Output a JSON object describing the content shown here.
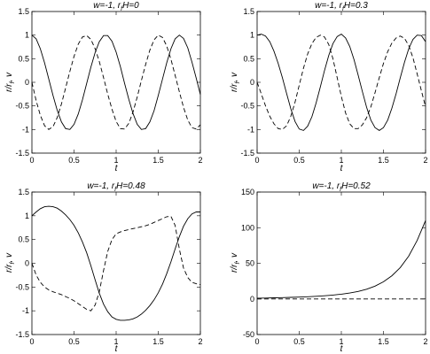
{
  "figure": {
    "panels_count": 4
  },
  "chart_data": [
    {
      "type": "line",
      "title": "w=-1, r_fH=0",
      "title_parts": [
        "w=-1, r",
        "f",
        "H=0"
      ],
      "xlabel": "t",
      "ylabel_parts": [
        "r/r",
        "f",
        ", v"
      ],
      "xlim": [
        0,
        2
      ],
      "ylim": [
        -1.5,
        1.5
      ],
      "xticks": [
        "0",
        "0.5",
        "1",
        "1.5",
        "2"
      ],
      "yticks": [
        "-1.5",
        "-1",
        "-0.5",
        "0",
        "0.5",
        "1",
        "1.5"
      ],
      "xtick_values": [
        0,
        0.5,
        1,
        1.5,
        2
      ],
      "ytick_values": [
        -1.5,
        -1,
        -0.5,
        0,
        0.5,
        1,
        1.5
      ],
      "series": [
        {
          "style": "solid",
          "x": [
            0,
            0.05,
            0.1,
            0.15,
            0.2,
            0.25,
            0.3,
            0.35,
            0.4,
            0.45,
            0.5,
            0.55,
            0.6,
            0.65,
            0.7,
            0.75,
            0.8,
            0.85,
            0.9,
            0.95,
            1.0,
            1.05,
            1.1,
            1.15,
            1.2,
            1.25,
            1.3,
            1.35,
            1.4,
            1.45,
            1.5,
            1.55,
            1.6,
            1.65,
            1.7,
            1.75,
            1.8,
            1.85,
            1.9,
            1.95,
            2.0
          ],
          "y": [
            1.0,
            0.92,
            0.71,
            0.41,
            0.07,
            -0.28,
            -0.59,
            -0.84,
            -0.98,
            -1.0,
            -0.89,
            -0.67,
            -0.37,
            -0.02,
            0.32,
            0.63,
            0.86,
            0.99,
            0.99,
            0.87,
            0.64,
            0.33,
            -0.02,
            -0.36,
            -0.66,
            -0.89,
            -1.0,
            -0.98,
            -0.84,
            -0.6,
            -0.28,
            0.07,
            0.41,
            0.71,
            0.92,
            1.0,
            0.93,
            0.73,
            0.43,
            0.09,
            -0.26
          ]
        },
        {
          "style": "dashed",
          "x": [
            0,
            0.05,
            0.1,
            0.15,
            0.2,
            0.25,
            0.3,
            0.35,
            0.4,
            0.45,
            0.5,
            0.55,
            0.6,
            0.65,
            0.7,
            0.75,
            0.8,
            0.85,
            0.9,
            0.95,
            1.0,
            1.05,
            1.1,
            1.15,
            1.2,
            1.25,
            1.3,
            1.35,
            1.4,
            1.45,
            1.5,
            1.55,
            1.6,
            1.65,
            1.7,
            1.75,
            1.8,
            1.85,
            1.9,
            1.95,
            2.0
          ],
          "y": [
            0.0,
            -0.39,
            -0.7,
            -0.92,
            -1.0,
            -0.94,
            -0.75,
            -0.46,
            -0.12,
            0.23,
            0.55,
            0.81,
            0.96,
            0.99,
            0.91,
            0.71,
            0.44,
            0.1,
            -0.25,
            -0.57,
            -0.83,
            -0.98,
            -0.99,
            -0.87,
            -0.63,
            -0.31,
            0.04,
            0.38,
            0.68,
            0.9,
            1.0,
            0.95,
            0.77,
            0.49,
            0.15,
            -0.2,
            -0.53,
            -0.8,
            -0.96,
            -0.99,
            -0.9
          ]
        }
      ]
    },
    {
      "type": "line",
      "title": "w=-1, r_fH=0.3",
      "title_parts": [
        "w=-1, r",
        "f",
        "H=0.3"
      ],
      "xlabel": "t",
      "ylabel_parts": [
        "r/r",
        "f",
        ", v"
      ],
      "xlim": [
        0,
        2
      ],
      "ylim": [
        -1.5,
        1.5
      ],
      "xticks": [
        "0",
        "0.5",
        "1",
        "1.5",
        "2"
      ],
      "yticks": [
        "-1.5",
        "-1",
        "-0.5",
        "0",
        "0.5",
        "1",
        "1.5"
      ],
      "xtick_values": [
        0,
        0.5,
        1,
        1.5,
        2
      ],
      "ytick_values": [
        -1.5,
        -1,
        -0.5,
        0,
        0.5,
        1,
        1.5
      ],
      "series": [
        {
          "style": "solid",
          "x": [
            0,
            0.05,
            0.1,
            0.15,
            0.2,
            0.25,
            0.3,
            0.35,
            0.4,
            0.45,
            0.5,
            0.55,
            0.6,
            0.65,
            0.7,
            0.75,
            0.8,
            0.85,
            0.9,
            0.95,
            1.0,
            1.05,
            1.1,
            1.15,
            1.2,
            1.25,
            1.3,
            1.35,
            1.4,
            1.45,
            1.5,
            1.55,
            1.6,
            1.65,
            1.7,
            1.75,
            1.8,
            1.85,
            1.9,
            1.95,
            2.0
          ],
          "y": [
            1.0,
            1.02,
            0.98,
            0.86,
            0.66,
            0.4,
            0.1,
            -0.24,
            -0.56,
            -0.83,
            -0.99,
            -1.02,
            -0.93,
            -0.73,
            -0.44,
            -0.1,
            0.25,
            0.57,
            0.82,
            0.97,
            1.02,
            0.94,
            0.76,
            0.48,
            0.15,
            -0.2,
            -0.53,
            -0.8,
            -0.96,
            -1.02,
            -0.96,
            -0.8,
            -0.55,
            -0.24,
            0.1,
            0.43,
            0.71,
            0.91,
            1.0,
            0.99,
            0.86
          ]
        },
        {
          "style": "dashed",
          "x": [
            0,
            0.05,
            0.1,
            0.15,
            0.2,
            0.25,
            0.3,
            0.35,
            0.4,
            0.45,
            0.5,
            0.55,
            0.6,
            0.65,
            0.7,
            0.75,
            0.8,
            0.85,
            0.9,
            0.95,
            1.0,
            1.05,
            1.1,
            1.15,
            1.2,
            1.25,
            1.3,
            1.35,
            1.4,
            1.45,
            1.5,
            1.55,
            1.6,
            1.65,
            1.7,
            1.75,
            1.8,
            1.85,
            1.9,
            1.95,
            2.0
          ],
          "y": [
            0.0,
            -0.25,
            -0.5,
            -0.72,
            -0.88,
            -0.98,
            -1.0,
            -0.92,
            -0.72,
            -0.42,
            -0.06,
            0.3,
            0.6,
            0.82,
            0.95,
            1.0,
            0.96,
            0.8,
            0.5,
            0.1,
            -0.3,
            -0.65,
            -0.88,
            -0.98,
            -0.98,
            -0.9,
            -0.75,
            -0.52,
            -0.22,
            0.1,
            0.4,
            0.65,
            0.83,
            0.94,
            0.98,
            0.93,
            0.78,
            0.52,
            0.18,
            -0.18,
            -0.52
          ]
        }
      ]
    },
    {
      "type": "line",
      "title": "w=-1, r_fH=0.48",
      "title_parts": [
        "w=-1, r",
        "f",
        "H=0.48"
      ],
      "xlabel": "t",
      "ylabel_parts": [
        "r/r",
        "f",
        ", v"
      ],
      "xlim": [
        0,
        2
      ],
      "ylim": [
        -1.5,
        1.5
      ],
      "xticks": [
        "0",
        "0.5",
        "1",
        "1.5",
        "2"
      ],
      "yticks": [
        "-1.5",
        "-1",
        "-0.5",
        "0",
        "0.5",
        "1",
        "1.5"
      ],
      "xtick_values": [
        0,
        0.5,
        1,
        1.5,
        2
      ],
      "ytick_values": [
        -1.5,
        -1,
        -0.5,
        0,
        0.5,
        1,
        1.5
      ],
      "series": [
        {
          "style": "solid",
          "x": [
            0,
            0.05,
            0.1,
            0.15,
            0.2,
            0.25,
            0.3,
            0.35,
            0.4,
            0.45,
            0.5,
            0.55,
            0.6,
            0.65,
            0.7,
            0.75,
            0.8,
            0.85,
            0.9,
            0.95,
            1.0,
            1.05,
            1.1,
            1.15,
            1.2,
            1.25,
            1.3,
            1.35,
            1.4,
            1.45,
            1.5,
            1.55,
            1.6,
            1.65,
            1.7,
            1.75,
            1.8,
            1.85,
            1.9,
            1.95,
            2.0
          ],
          "y": [
            1.0,
            1.08,
            1.15,
            1.19,
            1.2,
            1.19,
            1.16,
            1.1,
            1.02,
            0.92,
            0.8,
            0.64,
            0.45,
            0.22,
            -0.05,
            -0.35,
            -0.63,
            -0.86,
            -1.02,
            -1.13,
            -1.18,
            -1.2,
            -1.2,
            -1.19,
            -1.17,
            -1.13,
            -1.07,
            -0.99,
            -0.89,
            -0.77,
            -0.62,
            -0.44,
            -0.22,
            0.03,
            0.3,
            0.56,
            0.78,
            0.94,
            1.04,
            1.08,
            1.08
          ]
        },
        {
          "style": "dashed",
          "x": [
            0,
            0.05,
            0.1,
            0.15,
            0.2,
            0.25,
            0.3,
            0.35,
            0.4,
            0.45,
            0.5,
            0.55,
            0.6,
            0.65,
            0.7,
            0.75,
            0.8,
            0.85,
            0.9,
            0.95,
            1.0,
            1.05,
            1.1,
            1.15,
            1.2,
            1.25,
            1.3,
            1.35,
            1.4,
            1.45,
            1.5,
            1.55,
            1.6,
            1.65,
            1.7,
            1.75,
            1.8,
            1.85,
            1.9,
            1.95,
            2.0
          ],
          "y": [
            0.0,
            -0.25,
            -0.4,
            -0.5,
            -0.56,
            -0.6,
            -0.63,
            -0.66,
            -0.7,
            -0.74,
            -0.79,
            -0.85,
            -0.91,
            -0.97,
            -1.0,
            -0.88,
            -0.6,
            -0.15,
            0.25,
            0.5,
            0.62,
            0.66,
            0.69,
            0.71,
            0.73,
            0.75,
            0.77,
            0.79,
            0.82,
            0.86,
            0.9,
            0.94,
            0.98,
            0.99,
            0.8,
            0.3,
            -0.1,
            -0.3,
            -0.4,
            -0.43,
            -0.45
          ]
        }
      ]
    },
    {
      "type": "line",
      "title": "w=-1, r_fH=0.52",
      "title_parts": [
        "w=-1, r",
        "f",
        "H=0.52"
      ],
      "xlabel": "t",
      "ylabel_parts": [
        "r/r",
        "f",
        ", v"
      ],
      "xlim": [
        0,
        2
      ],
      "ylim": [
        -50,
        150
      ],
      "xticks": [
        "0",
        "0.5",
        "1",
        "1.5",
        "2"
      ],
      "yticks": [
        "-50",
        "0",
        "50",
        "100",
        "150"
      ],
      "xtick_values": [
        0,
        0.5,
        1,
        1.5,
        2
      ],
      "ytick_values": [
        -50,
        0,
        50,
        100,
        150
      ],
      "series": [
        {
          "style": "solid",
          "x": [
            0,
            0.1,
            0.2,
            0.3,
            0.4,
            0.5,
            0.6,
            0.7,
            0.8,
            0.9,
            1.0,
            1.1,
            1.2,
            1.3,
            1.4,
            1.5,
            1.6,
            1.7,
            1.8,
            1.9,
            2.0
          ],
          "y": [
            1,
            1.2,
            1.5,
            1.8,
            2.2,
            2.6,
            3.1,
            3.7,
            4.4,
            5.4,
            6.6,
            8.2,
            10.5,
            13.6,
            18,
            24,
            32.5,
            44,
            60,
            82,
            110
          ]
        },
        {
          "style": "dashed",
          "x": [
            0,
            0.5,
            1.0,
            1.5,
            2.0
          ],
          "y": [
            0,
            0,
            0,
            0,
            0
          ]
        }
      ]
    }
  ]
}
